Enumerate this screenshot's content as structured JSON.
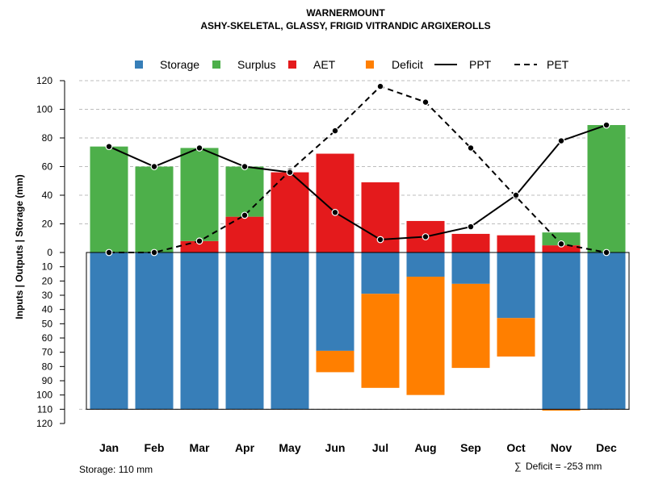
{
  "chart_data": {
    "type": "bar",
    "title": "WARNERMOUNT",
    "subtitle": "ASHY-SKELETAL, GLASSY, FRIGID VITRANDIC ARGIXEROLLS",
    "ylabel": "Inputs | Outputs | Storage    (mm)",
    "ylim": [
      -120,
      120
    ],
    "upper_ticks": [
      "0",
      "20",
      "40",
      "60",
      "80",
      "100",
      "120"
    ],
    "lower_ticks": [
      "10",
      "20",
      "30",
      "40",
      "50",
      "60",
      "70",
      "80",
      "90",
      "100",
      "110",
      "120"
    ],
    "categories": [
      "Jan",
      "Feb",
      "Mar",
      "Apr",
      "May",
      "Jun",
      "Jul",
      "Aug",
      "Sep",
      "Oct",
      "Nov",
      "Dec"
    ],
    "series": [
      {
        "name": "AET",
        "color": "#E41A1C",
        "values": [
          0,
          0,
          8,
          25,
          56,
          69,
          49,
          22,
          13,
          12,
          5,
          0
        ]
      },
      {
        "name": "Surplus",
        "color": "#4DAF4A",
        "values": [
          74,
          60,
          65,
          35,
          0,
          0,
          0,
          0,
          0,
          0,
          9,
          89
        ]
      },
      {
        "name": "Storage",
        "color": "#377EB8",
        "values": [
          110,
          110,
          110,
          110,
          110,
          69,
          29,
          17,
          22,
          46,
          110,
          110
        ]
      },
      {
        "name": "Deficit",
        "color": "#FF7F00",
        "values": [
          0,
          0,
          0,
          0,
          0,
          15,
          66,
          83,
          59,
          27,
          1,
          0
        ]
      },
      {
        "name": "PPT",
        "color": "#000000",
        "values": [
          74,
          60,
          73,
          60,
          56,
          28,
          9,
          11,
          18,
          40,
          78,
          89
        ]
      },
      {
        "name": "PET",
        "color": "#000000",
        "values": [
          0,
          0,
          8,
          26,
          57,
          85,
          116,
          105,
          73,
          39,
          6,
          0
        ]
      }
    ],
    "legend": [
      {
        "label": "Storage",
        "kind": "box",
        "color": "#377EB8"
      },
      {
        "label": "Surplus",
        "kind": "box",
        "color": "#4DAF4A"
      },
      {
        "label": "AET",
        "kind": "box",
        "color": "#E41A1C"
      },
      {
        "label": "Deficit",
        "kind": "box",
        "color": "#FF7F00"
      },
      {
        "label": "PPT",
        "kind": "line",
        "color": "#000000"
      },
      {
        "label": "PET",
        "kind": "dashed",
        "color": "#000000"
      }
    ],
    "legend_position": "top",
    "storage_capacity": 110,
    "storage_note": "Storage: 110 mm",
    "deficit_note": "Deficit = -253 mm",
    "sum_symbol": "∑"
  }
}
